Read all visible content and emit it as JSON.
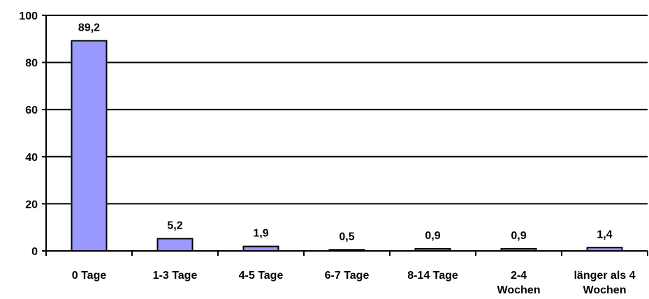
{
  "chart_data": {
    "type": "bar",
    "categories": [
      [
        "0 Tage"
      ],
      [
        "1-3 Tage"
      ],
      [
        "4-5 Tage"
      ],
      [
        "6-7 Tage"
      ],
      [
        "8-14 Tage"
      ],
      [
        "2-4",
        "Wochen"
      ],
      [
        "länger als 4",
        "Wochen"
      ]
    ],
    "values": [
      89.2,
      5.2,
      1.9,
      0.5,
      0.9,
      0.9,
      1.4
    ],
    "value_labels": [
      "89,2",
      "5,2",
      "1,9",
      "0,5",
      "0,9",
      "0,9",
      "1,4"
    ],
    "ylim": [
      0,
      100
    ],
    "yticks": [
      0,
      20,
      40,
      60,
      80,
      100
    ],
    "grid": true,
    "bar_color": "#9999ff",
    "bar_edge_color": "#000000",
    "legend": "none"
  }
}
